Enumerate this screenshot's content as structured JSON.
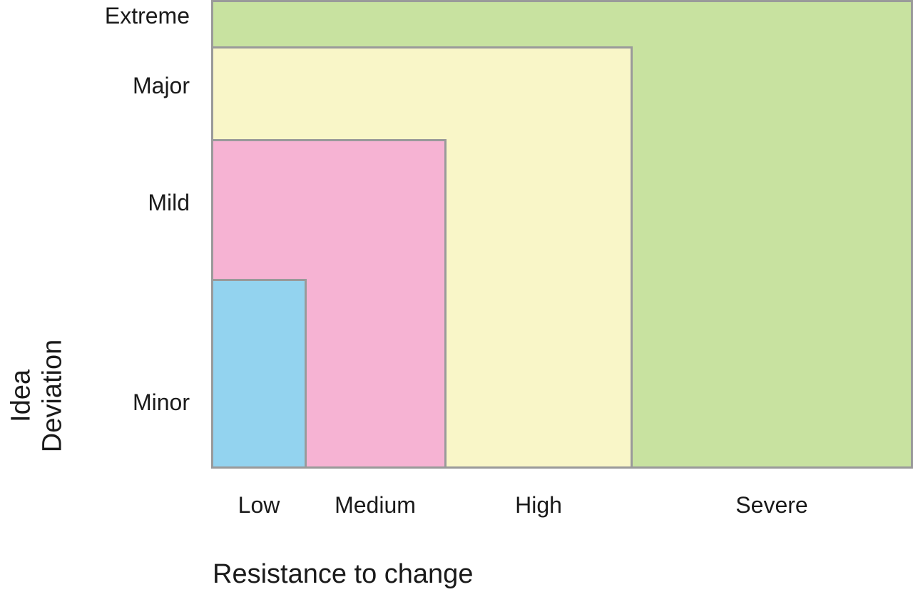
{
  "diagram": {
    "x_axis_title": "Resistance to change",
    "y_axis_title_lines": [
      "Idea",
      "Deviation"
    ],
    "levels": [
      {
        "deviation": "Minor",
        "resistance": "Low",
        "color": "#93d3ef"
      },
      {
        "deviation": "Mild",
        "resistance": "Medium",
        "color": "#f6b3d3"
      },
      {
        "deviation": "Major",
        "resistance": "High",
        "color": "#f9f6c8"
      },
      {
        "deviation": "Extreme",
        "resistance": "Severe",
        "color": "#c8e2a0"
      }
    ],
    "border_color": "#9a9a9a"
  }
}
